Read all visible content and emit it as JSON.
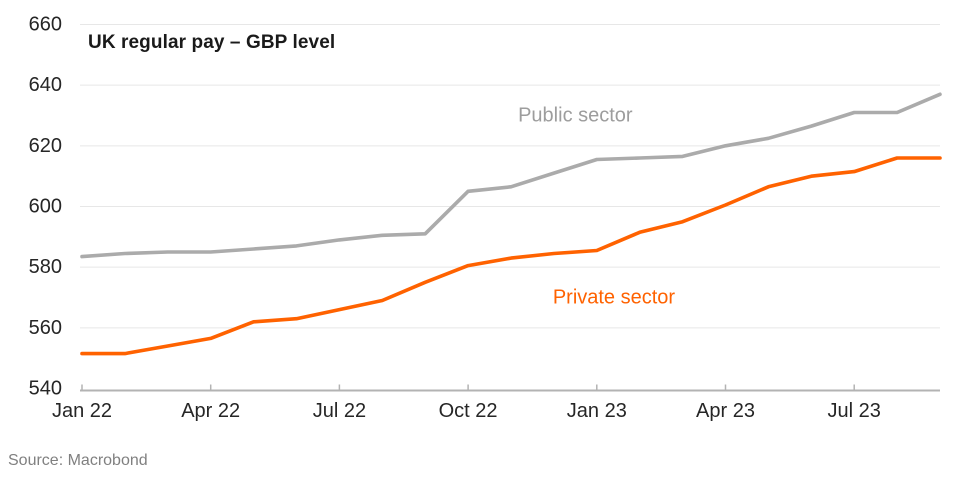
{
  "header": {
    "title": "UK regular pay – GBP level"
  },
  "footer": {
    "source": "Source: Macrobond"
  },
  "colors": {
    "public_line": "#ababab",
    "private_line": "#ff6200",
    "public_label": "#9d9d9d",
    "private_label": "#ff6200",
    "grid": "#e7e7e7",
    "axis": "#b3b3b3",
    "tick_label": "#262626",
    "source_text": "#808080",
    "title_text": "#1a1a1a"
  },
  "chart_data": {
    "type": "line",
    "title": "UK regular pay – GBP level",
    "xlabel": "",
    "ylabel": "",
    "x": [
      "Jan 22",
      "Feb 22",
      "Mar 22",
      "Apr 22",
      "May 22",
      "Jun 22",
      "Jul 22",
      "Aug 22",
      "Sep 22",
      "Oct 22",
      "Nov 22",
      "Dec 22",
      "Jan 23",
      "Feb 23",
      "Mar 23",
      "Apr 23",
      "May 23",
      "Jun 23",
      "Jul 23",
      "Aug 23",
      "Sep 23"
    ],
    "x_tick_labels": [
      "Jan 22",
      "Apr 22",
      "Jul 22",
      "Oct 22",
      "Jan 23",
      "Apr 23",
      "Jul 23"
    ],
    "x_tick_indices": [
      0,
      3,
      6,
      9,
      12,
      15,
      18
    ],
    "ylim": [
      540,
      660
    ],
    "y_ticks": [
      540,
      560,
      580,
      600,
      620,
      640,
      660
    ],
    "grid": "horizontal gridlines on, no vertical gridlines",
    "legend": "inline labels next to lines",
    "series": [
      {
        "name": "Public sector",
        "color": "#ababab",
        "values": [
          583.5,
          584.5,
          585,
          585,
          586,
          587,
          589,
          590.5,
          591,
          605,
          606.5,
          611,
          615.5,
          616,
          616.5,
          620,
          622.5,
          626.5,
          631,
          631,
          637
        ]
      },
      {
        "name": "Private sector",
        "color": "#ff6200",
        "values": [
          551.5,
          551.5,
          554,
          556.5,
          562,
          563,
          566,
          569,
          575,
          580.5,
          583,
          584.5,
          585.5,
          591.5,
          595,
          600.5,
          606.5,
          610,
          611.5,
          616,
          616
        ]
      }
    ],
    "series_labels": [
      {
        "text": "Public sector",
        "color": "#9d9d9d",
        "x_index": 11.5,
        "value": 630
      },
      {
        "text": "Private sector",
        "color": "#ff6200",
        "x_index": 12.4,
        "value": 570
      }
    ]
  }
}
